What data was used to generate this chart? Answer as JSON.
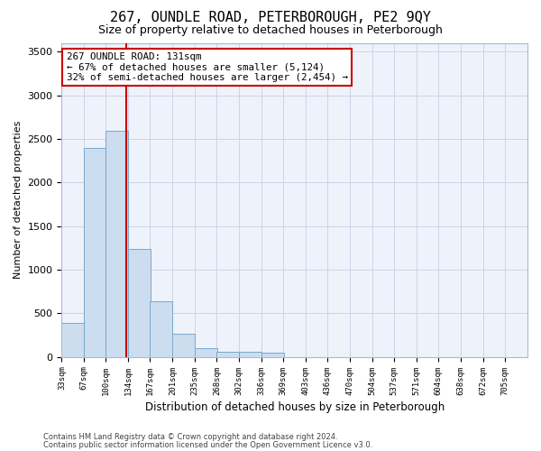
{
  "title": "267, OUNDLE ROAD, PETERBOROUGH, PE2 9QY",
  "subtitle": "Size of property relative to detached houses in Peterborough",
  "xlabel": "Distribution of detached houses by size in Peterborough",
  "ylabel": "Number of detached properties",
  "footer_line1": "Contains HM Land Registry data © Crown copyright and database right 2024.",
  "footer_line2": "Contains public sector information licensed under the Open Government Licence v3.0.",
  "annotation_title": "267 OUNDLE ROAD: 131sqm",
  "annotation_line2": "← 67% of detached houses are smaller (5,124)",
  "annotation_line3": "32% of semi-detached houses are larger (2,454) →",
  "bar_edges": [
    33,
    67,
    100,
    134,
    167,
    201,
    235,
    268,
    302,
    336,
    369,
    403,
    436,
    470,
    504,
    537,
    571,
    604,
    638,
    672,
    705
  ],
  "bar_heights": [
    390,
    2400,
    2590,
    1240,
    640,
    260,
    95,
    60,
    55,
    45,
    0,
    0,
    0,
    0,
    0,
    0,
    0,
    0,
    0,
    0
  ],
  "property_size": 131,
  "bar_color": "#ccddef",
  "bar_edge_color": "#7aa8cc",
  "vline_color": "#cc0000",
  "ylim": [
    0,
    3600
  ],
  "yticks": [
    0,
    500,
    1000,
    1500,
    2000,
    2500,
    3000,
    3500
  ],
  "background_color": "#eef2fa",
  "grid_color": "#ccd4e8",
  "annotation_box_color": "#cc0000",
  "title_fontsize": 11,
  "subtitle_fontsize": 9
}
